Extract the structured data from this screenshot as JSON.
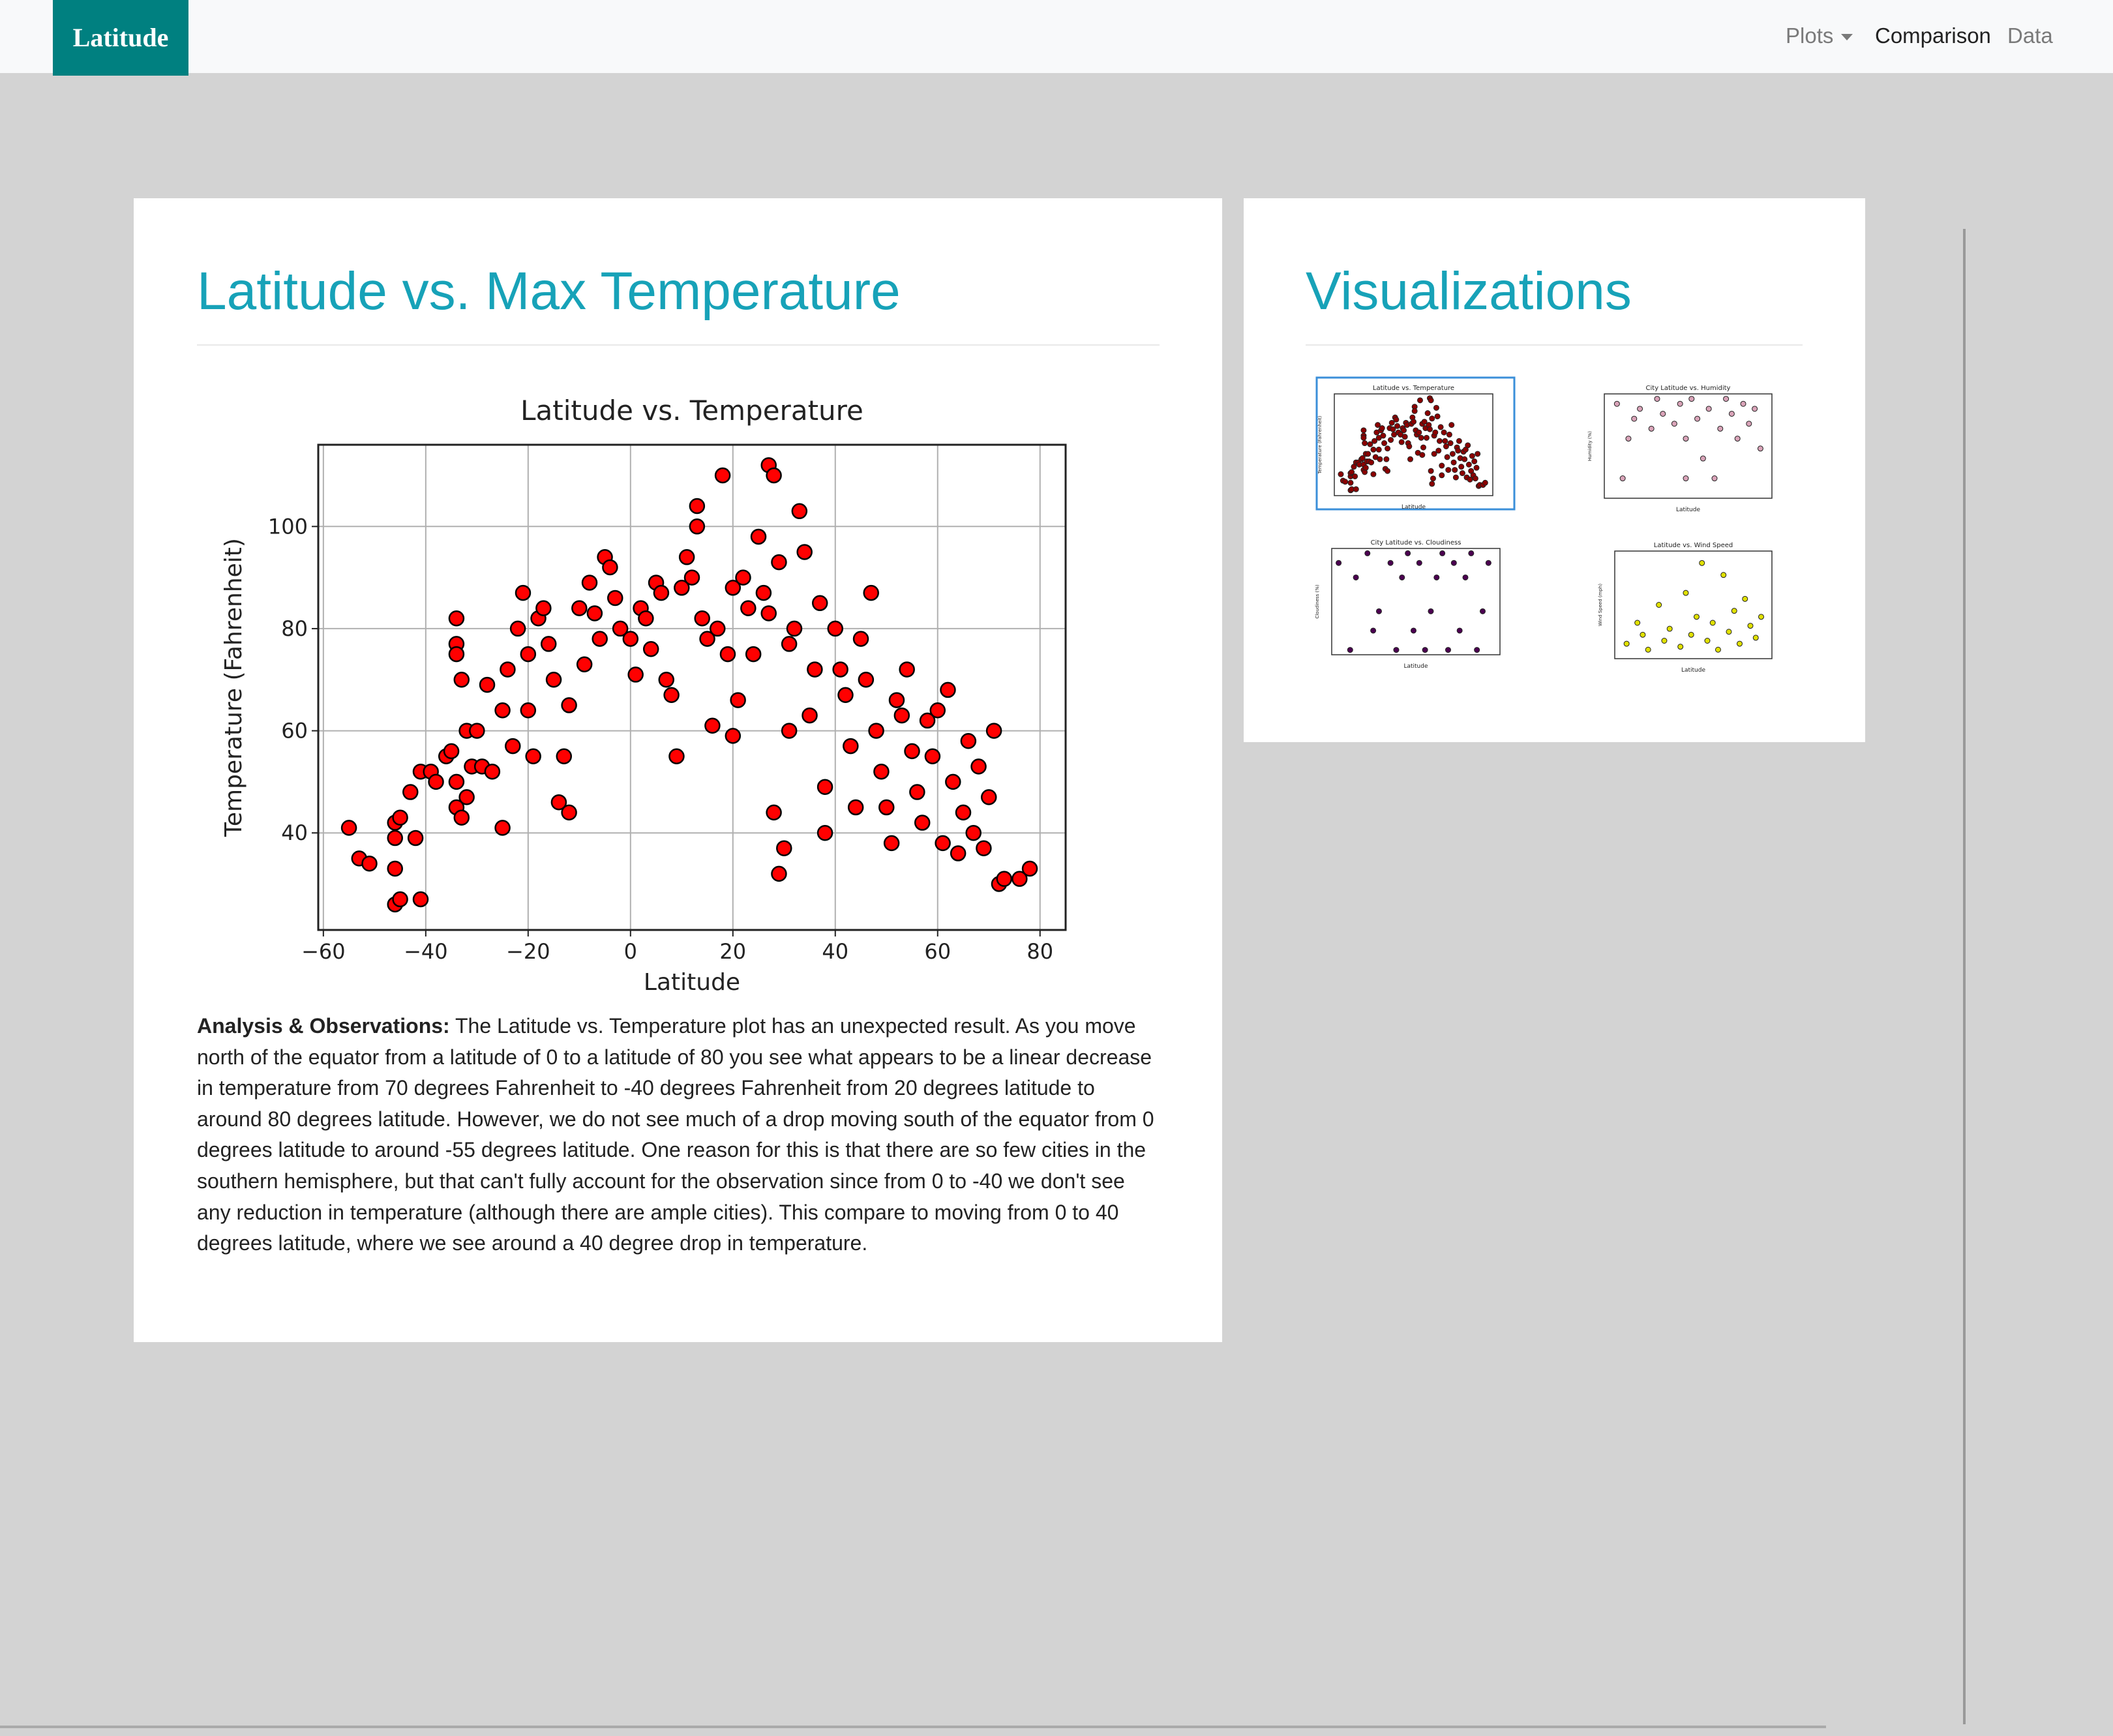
{
  "navbar": {
    "brand": "Latitude",
    "links": [
      "Plots",
      "Comparison",
      "Data"
    ]
  },
  "main": {
    "heading": "Latitude vs. Max Temperature",
    "analysis": {
      "label": "Analysis & Observations:",
      "text": "The Latitude vs. Temperature plot has an unexpected result. As you move north of the equator from a latitude of 0 to a latitude of 80 you see what appears to be a linear decrease in temperature from 70 degrees Fahrenheit to -40 degrees Fahrenheit from 20 degrees latitude to around 80 degrees latitude. However, we do not see much of a drop moving south of the equator from 0 degrees latitude to around -55 degrees latitude. One reason for this is that there are so few cities in the southern hemisphere, but that can't fully account for the observation since from 0 to -40 we don't see any reduction in temperature (although there are ample cities). This compare to moving from 0 to 40 degrees latitude, where we see around a 40 degree drop in temperature."
    }
  },
  "sidebar": {
    "heading": "Visualizations"
  },
  "chart_data": [
    {
      "type": "scatter",
      "title": "Latitude vs. Temperature",
      "xlabel": "Latitude",
      "ylabel": "Temperature (Fahrenheit)",
      "color": "#ff0000",
      "edgecolor": "#000000",
      "grid": true,
      "xlim": [
        -61,
        85
      ],
      "ylim": [
        21,
        116
      ],
      "xticks": [
        {
          "value": -60,
          "label": "−60"
        },
        {
          "value": -40,
          "label": "−40"
        },
        {
          "value": -20,
          "label": "−20"
        },
        0,
        20,
        40,
        60,
        80
      ],
      "yticks": [
        40,
        60,
        80,
        100
      ],
      "x": [
        -55,
        -53,
        -51,
        -46,
        -45,
        -46,
        -46,
        -46,
        -45,
        -43,
        -42,
        -41,
        -41,
        -39,
        -38,
        -36,
        -35,
        -34,
        -34,
        -34,
        -33,
        -34,
        -34,
        -33,
        -32,
        -32,
        -30,
        -31,
        -29,
        -28,
        -27,
        -25,
        -25,
        -24,
        -23,
        -22,
        -21,
        -20,
        -20,
        -19,
        -18,
        -17,
        -16,
        -15,
        -14,
        -13,
        -12,
        -12,
        -10,
        -9,
        -8,
        -7,
        -6,
        -5,
        -4,
        -3,
        -2,
        0,
        1,
        2,
        3,
        4,
        5,
        6,
        7,
        8,
        9,
        10,
        11,
        12,
        13,
        13,
        14,
        15,
        16,
        17,
        18,
        19,
        20,
        20,
        21,
        22,
        23,
        24,
        25,
        26,
        27,
        27,
        28,
        29,
        28,
        29,
        30,
        31,
        31,
        32,
        33,
        34,
        35,
        36,
        37,
        38,
        38,
        40,
        41,
        42,
        43,
        44,
        45,
        46,
        47,
        48,
        49,
        50,
        51,
        52,
        53,
        54,
        55,
        56,
        57,
        58,
        59,
        60,
        61,
        62,
        63,
        64,
        65,
        66,
        67,
        68,
        69,
        70,
        71,
        72,
        73,
        76,
        78
      ],
      "values": [
        41,
        35,
        34,
        26,
        27,
        33,
        39,
        42,
        43,
        48,
        39,
        27,
        52,
        52,
        50,
        55,
        56,
        82,
        77,
        75,
        70,
        50,
        45,
        43,
        47,
        60,
        60,
        53,
        53,
        69,
        52,
        41,
        64,
        72,
        57,
        80,
        87,
        75,
        64,
        55,
        82,
        84,
        77,
        70,
        46,
        55,
        44,
        65,
        84,
        73,
        89,
        83,
        78,
        94,
        92,
        86,
        80,
        78,
        71,
        84,
        82,
        76,
        89,
        87,
        70,
        67,
        55,
        88,
        94,
        90,
        104,
        100,
        82,
        78,
        61,
        80,
        110,
        75,
        59,
        88,
        66,
        90,
        84,
        75,
        98,
        87,
        83,
        112,
        110,
        93,
        44,
        32,
        37,
        77,
        60,
        80,
        103,
        95,
        63,
        72,
        85,
        49,
        40,
        80,
        72,
        67,
        57,
        45,
        78,
        70,
        87,
        60,
        52,
        45,
        38,
        66,
        63,
        72,
        56,
        48,
        42,
        62,
        55,
        64,
        38,
        68,
        50,
        36,
        44,
        58,
        40,
        53,
        37,
        47,
        60,
        30,
        31,
        31,
        33
      ]
    },
    {
      "type": "thumbnail",
      "title": "Latitude vs. Temperature",
      "xlabel": "Latitude",
      "ylabel": "Temperature (Fahrenheit)",
      "color": "#8b0000",
      "xlim": [
        -61,
        85
      ],
      "ylim": [
        21,
        116
      ]
    },
    {
      "type": "thumbnail",
      "title": "City Latitude vs. Humidity",
      "xlabel": "Latitude",
      "ylabel": "Humidity (%)",
      "color": "#d9a3b8",
      "xlim": [
        -61,
        85
      ],
      "ylim": [
        0,
        105
      ],
      "x": [
        -50,
        -40,
        -35,
        -30,
        -20,
        -15,
        -10,
        0,
        5,
        10,
        15,
        20,
        25,
        30,
        35,
        40,
        45,
        50,
        55,
        60,
        65,
        70,
        75,
        -45,
        10
      ],
      "values": [
        95,
        60,
        80,
        90,
        70,
        100,
        85,
        75,
        95,
        60,
        100,
        80,
        40,
        90,
        20,
        70,
        100,
        85,
        60,
        95,
        75,
        90,
        50,
        20,
        20
      ]
    },
    {
      "type": "thumbnail",
      "title": "City Latitude vs. Cloudiness",
      "xlabel": "Latitude",
      "ylabel": "Cloudiness (%)",
      "color": "#4b0050",
      "xlim": [
        -61,
        85
      ],
      "ylim": [
        -5,
        105
      ],
      "x": [
        -55,
        -45,
        -40,
        -30,
        -25,
        -20,
        -10,
        -5,
        0,
        5,
        10,
        15,
        20,
        25,
        30,
        35,
        40,
        45,
        50,
        55,
        60,
        65,
        70,
        75
      ],
      "values": [
        90,
        0,
        75,
        100,
        20,
        40,
        90,
        0,
        75,
        100,
        20,
        90,
        0,
        40,
        75,
        100,
        0,
        90,
        20,
        75,
        100,
        0,
        40,
        90
      ]
    },
    {
      "type": "thumbnail",
      "title": "Latitude vs. Wind Speed",
      "xlabel": "Latitude",
      "ylabel": "Wind Speed (mph)",
      "color": "#e0e000",
      "xlim": [
        -61,
        85
      ],
      "ylim": [
        0,
        36
      ],
      "x": [
        -50,
        -40,
        -35,
        -30,
        -20,
        -15,
        -10,
        0,
        5,
        10,
        15,
        20,
        25,
        30,
        35,
        40,
        45,
        50,
        55,
        60,
        65,
        70,
        75
      ],
      "values": [
        5,
        12,
        8,
        3,
        18,
        6,
        10,
        4,
        22,
        8,
        14,
        32,
        6,
        12,
        3,
        28,
        9,
        16,
        5,
        20,
        11,
        7,
        14
      ]
    }
  ]
}
